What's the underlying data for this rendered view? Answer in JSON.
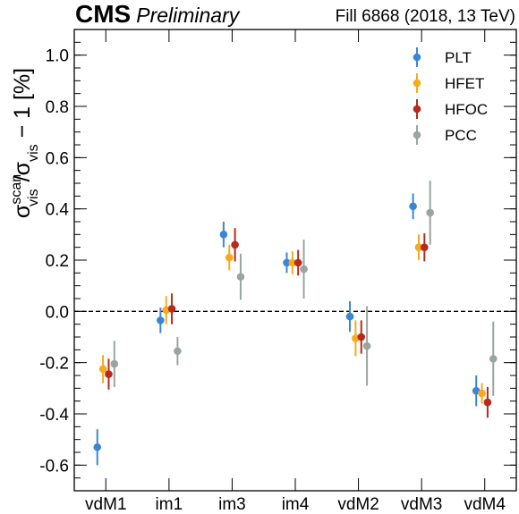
{
  "header": {
    "experiment": "CMS",
    "status": "Preliminary",
    "fill_info": "Fill 6868 (2018, 13 TeV)"
  },
  "chart_data": {
    "type": "scatter",
    "title": "",
    "ylabel": {
      "sigma": "σ",
      "sup": "scan",
      "sub": "vis",
      "slash": "/",
      "sigma2": "σ",
      "sub2": "vis",
      "rest": " − 1 [%]"
    },
    "xlabel": "",
    "categories": [
      "vdM1",
      "im1",
      "im3",
      "im4",
      "vdM2",
      "vdM3",
      "vdM4"
    ],
    "ylim": [
      -0.7,
      1.1
    ],
    "yticks": [
      "-0.6",
      "-0.4",
      "-0.2",
      "0.0",
      "0.2",
      "0.4",
      "0.6",
      "0.8",
      "1.0"
    ],
    "ytick_values": [
      -0.6,
      -0.4,
      -0.2,
      0.0,
      0.2,
      0.4,
      0.6,
      0.8,
      1.0
    ],
    "reference_line": 0.0,
    "legend_position": "top-right",
    "series": [
      {
        "name": "PLT",
        "color": "#3a86d4",
        "values": [
          -0.53,
          -0.035,
          0.3,
          0.19,
          -0.02,
          0.41,
          -0.31
        ],
        "err": [
          0.07,
          0.05,
          0.05,
          0.04,
          0.06,
          0.05,
          0.06
        ]
      },
      {
        "name": "HFET",
        "color": "#f6aa1c",
        "values": [
          -0.225,
          0.005,
          0.21,
          0.19,
          -0.105,
          0.25,
          -0.32
        ],
        "err": [
          0.055,
          0.055,
          0.05,
          0.045,
          0.07,
          0.05,
          0.04
        ]
      },
      {
        "name": "HFOC",
        "color": "#b72a1e",
        "values": [
          -0.245,
          0.01,
          0.26,
          0.19,
          -0.1,
          0.25,
          -0.355
        ],
        "err": [
          0.06,
          0.06,
          0.065,
          0.05,
          0.065,
          0.055,
          0.06
        ]
      },
      {
        "name": "PCC",
        "color": "#9aa5a0",
        "values": [
          -0.205,
          -0.155,
          0.135,
          0.165,
          -0.135,
          0.385,
          -0.185
        ],
        "err": [
          0.09,
          0.055,
          0.09,
          0.115,
          0.155,
          0.125,
          0.145
        ]
      }
    ]
  }
}
